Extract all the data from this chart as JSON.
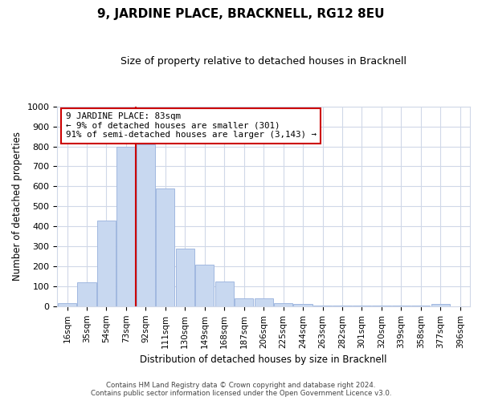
{
  "title": "9, JARDINE PLACE, BRACKNELL, RG12 8EU",
  "subtitle": "Size of property relative to detached houses in Bracknell",
  "xlabel": "Distribution of detached houses by size in Bracknell",
  "ylabel": "Number of detached properties",
  "bar_color": "#c8d8f0",
  "bar_edgecolor": "#a0b8e0",
  "bin_labels": [
    "16sqm",
    "35sqm",
    "54sqm",
    "73sqm",
    "92sqm",
    "111sqm",
    "130sqm",
    "149sqm",
    "168sqm",
    "187sqm",
    "206sqm",
    "225sqm",
    "244sqm",
    "263sqm",
    "282sqm",
    "301sqm",
    "320sqm",
    "339sqm",
    "358sqm",
    "377sqm",
    "396sqm"
  ],
  "bar_heights": [
    15,
    120,
    430,
    800,
    810,
    590,
    290,
    210,
    125,
    40,
    40,
    15,
    10,
    5,
    5,
    5,
    3,
    3,
    2,
    10,
    0
  ],
  "ylim": [
    0,
    1000
  ],
  "yticks": [
    0,
    100,
    200,
    300,
    400,
    500,
    600,
    700,
    800,
    900,
    1000
  ],
  "vline_x": 3.5,
  "vline_color": "#cc0000",
  "annotation_box_text": "9 JARDINE PLACE: 83sqm\n← 9% of detached houses are smaller (301)\n91% of semi-detached houses are larger (3,143) →",
  "footer_line1": "Contains HM Land Registry data © Crown copyright and database right 2024.",
  "footer_line2": "Contains public sector information licensed under the Open Government Licence v3.0.",
  "background_color": "#ffffff",
  "grid_color": "#d0d8e8"
}
